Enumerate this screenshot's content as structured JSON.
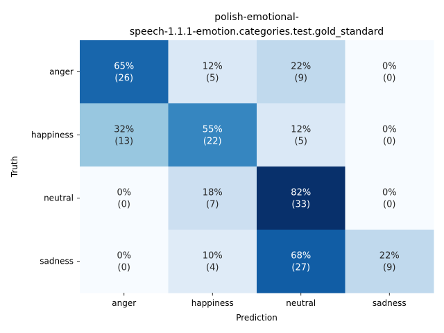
{
  "chart_data": {
    "type": "heatmap",
    "title_lines": [
      "polish-emotional-",
      "speech-1.1.1-emotion.categories.test.gold_standard"
    ],
    "xlabel": "Prediction",
    "ylabel": "Truth",
    "x_categories": [
      "anger",
      "happiness",
      "neutral",
      "sadness"
    ],
    "y_categories": [
      "anger",
      "happiness",
      "neutral",
      "sadness"
    ],
    "percent_labels": [
      [
        "65%",
        "12%",
        "22%",
        "0%"
      ],
      [
        "32%",
        "55%",
        "12%",
        "0%"
      ],
      [
        "0%",
        "18%",
        "82%",
        "0%"
      ],
      [
        "0%",
        "10%",
        "68%",
        "22%"
      ]
    ],
    "count_labels": [
      [
        "(26)",
        "(5)",
        "(9)",
        "(0)"
      ],
      [
        "(13)",
        "(22)",
        "(5)",
        "(0)"
      ],
      [
        "(0)",
        "(7)",
        "(33)",
        "(0)"
      ],
      [
        "(0)",
        "(4)",
        "(27)",
        "(9)"
      ]
    ],
    "values": [
      [
        65,
        12,
        22,
        0
      ],
      [
        32,
        55,
        12,
        0
      ],
      [
        0,
        18,
        82,
        0
      ],
      [
        0,
        10,
        68,
        22
      ]
    ],
    "colormap": "Blues",
    "grid": false,
    "colorbar": false
  }
}
